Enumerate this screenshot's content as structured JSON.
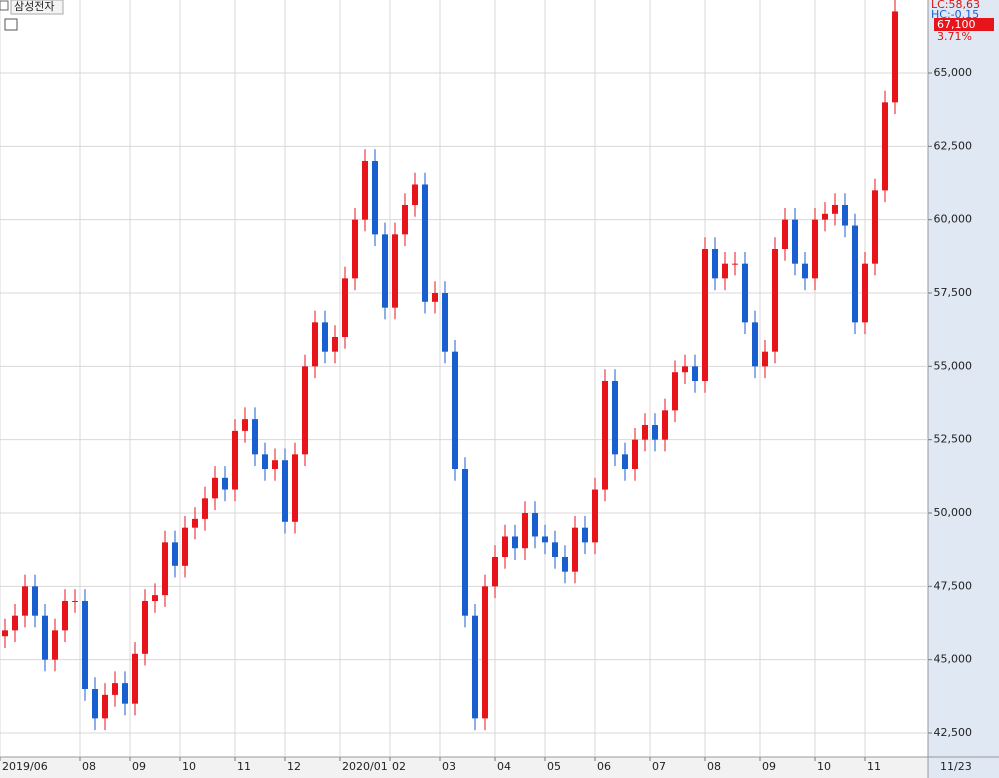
{
  "chart_data": {
    "type": "candlestick",
    "title": "삼성전자",
    "info_lines": [
      "LC:58,63",
      "HC:-0.15"
    ],
    "last_price_label": "67,100",
    "change_label": "3.71%",
    "date_label": "11/23",
    "up_color": "#e8141b",
    "down_color": "#1a5fd0",
    "grid": true,
    "xlim": [
      -0.5,
      92.3
    ],
    "xticks": [
      {
        "value": -0.5,
        "label": "2019/06"
      },
      {
        "value": 7.5,
        "label": "08"
      },
      {
        "value": 12.5,
        "label": "09"
      },
      {
        "value": 17.5,
        "label": "10"
      },
      {
        "value": 23,
        "label": "11"
      },
      {
        "value": 28,
        "label": "12"
      },
      {
        "value": 33.5,
        "label": "2020/01"
      },
      {
        "value": 38.5,
        "label": "02"
      },
      {
        "value": 43.5,
        "label": "03"
      },
      {
        "value": 49,
        "label": "04"
      },
      {
        "value": 54,
        "label": "05"
      },
      {
        "value": 59,
        "label": "06"
      },
      {
        "value": 64.5,
        "label": "07"
      },
      {
        "value": 70,
        "label": "08"
      },
      {
        "value": 75.5,
        "label": "09"
      },
      {
        "value": 81,
        "label": "10"
      },
      {
        "value": 86,
        "label": "11"
      }
    ],
    "ylim": [
      41682,
      67489
    ],
    "yticks": [
      {
        "value": 42500,
        "label": "42,500"
      },
      {
        "value": 45000,
        "label": "45,000"
      },
      {
        "value": 47500,
        "label": "47,500"
      },
      {
        "value": 50000,
        "label": "50,000"
      },
      {
        "value": 52500,
        "label": "52,500"
      },
      {
        "value": 55000,
        "label": "55,000"
      },
      {
        "value": 57500,
        "label": "57,500"
      },
      {
        "value": 60000,
        "label": "60,000"
      },
      {
        "value": 62500,
        "label": "62,500"
      },
      {
        "value": 65000,
        "label": "65,000"
      }
    ],
    "open": [
      45800,
      46000,
      46500,
      47500,
      46500,
      45000,
      46000,
      47000,
      47000,
      44000,
      43000,
      43800,
      44200,
      43500,
      45200,
      47000,
      47200,
      49000,
      48200,
      49500,
      49800,
      50500,
      51200,
      50800,
      52800,
      53200,
      52000,
      51500,
      51800,
      49700,
      52000,
      55000,
      56500,
      55500,
      56000,
      58000,
      60000,
      62000,
      59500,
      57000,
      59500,
      60500,
      61200,
      57200,
      57500,
      55500,
      51500,
      46500,
      43000,
      47500,
      48500,
      49200,
      48800,
      50000,
      49200,
      49000,
      48500,
      48000,
      49500,
      49000,
      50800,
      54500,
      52000,
      51500,
      52500,
      53000,
      52500,
      53500,
      54800,
      55000,
      54500,
      59000,
      58000,
      58500,
      58500,
      56500,
      55000,
      55500,
      59000,
      60000,
      58500,
      58000,
      60000,
      60200,
      60500,
      59800,
      56500,
      58500,
      61000,
      64000
    ],
    "high": [
      46400,
      46900,
      47900,
      47900,
      46900,
      46400,
      47400,
      47400,
      47400,
      44400,
      44200,
      44600,
      44600,
      45600,
      47400,
      47600,
      49400,
      49400,
      49900,
      50200,
      50900,
      51600,
      51600,
      53200,
      53600,
      53600,
      52400,
      52200,
      52200,
      52400,
      55400,
      56900,
      56900,
      56400,
      58400,
      60400,
      62400,
      62400,
      59900,
      59900,
      60900,
      61600,
      61600,
      57900,
      57900,
      55900,
      51900,
      46900,
      47900,
      48900,
      49600,
      49600,
      50400,
      50400,
      49600,
      49400,
      48900,
      49900,
      49900,
      51200,
      54900,
      54900,
      52400,
      52900,
      53400,
      53400,
      53900,
      55200,
      55400,
      55400,
      59400,
      59400,
      58900,
      58900,
      58900,
      56900,
      55900,
      59400,
      60400,
      60400,
      58900,
      60400,
      60600,
      60900,
      60900,
      60200,
      58900,
      61400,
      64400,
      67500
    ],
    "low": [
      45400,
      45600,
      46100,
      46100,
      44600,
      44600,
      45600,
      46600,
      43600,
      42600,
      42600,
      43400,
      43100,
      43100,
      44800,
      46600,
      46800,
      47800,
      47800,
      49100,
      49400,
      50100,
      50400,
      50400,
      52400,
      51600,
      51100,
      51100,
      49300,
      49300,
      51600,
      54600,
      55100,
      55100,
      55600,
      57600,
      59600,
      59100,
      56600,
      56600,
      59100,
      60100,
      56800,
      56800,
      55100,
      51100,
      46100,
      42600,
      42600,
      47100,
      48100,
      48400,
      48400,
      48800,
      48600,
      48100,
      47600,
      47600,
      48600,
      48600,
      50400,
      51600,
      51100,
      51100,
      52100,
      52100,
      52100,
      53100,
      54400,
      54100,
      54100,
      57600,
      57600,
      58100,
      56100,
      54600,
      54600,
      55100,
      58600,
      58100,
      57600,
      57600,
      59600,
      59800,
      59400,
      56100,
      56100,
      58100,
      60600,
      63600
    ],
    "close": [
      46000,
      46500,
      47500,
      46500,
      45000,
      46000,
      47000,
      47000,
      44000,
      43000,
      43800,
      44200,
      43500,
      45200,
      47000,
      47200,
      49000,
      48200,
      49500,
      49800,
      50500,
      51200,
      50800,
      52800,
      53200,
      52000,
      51500,
      51800,
      49700,
      52000,
      55000,
      56500,
      55500,
      56000,
      58000,
      60000,
      62000,
      59500,
      57000,
      59500,
      60500,
      61200,
      57200,
      57500,
      55500,
      51500,
      46500,
      43000,
      47500,
      48500,
      49200,
      48800,
      50000,
      49200,
      49000,
      48500,
      48000,
      49500,
      49000,
      50800,
      54500,
      52000,
      51500,
      52500,
      53000,
      52500,
      53500,
      54800,
      55000,
      54500,
      59000,
      58000,
      58500,
      58500,
      56500,
      55000,
      55500,
      59000,
      60000,
      58500,
      58000,
      60000,
      60200,
      60500,
      59800,
      56500,
      58500,
      61000,
      64000,
      67100
    ]
  }
}
